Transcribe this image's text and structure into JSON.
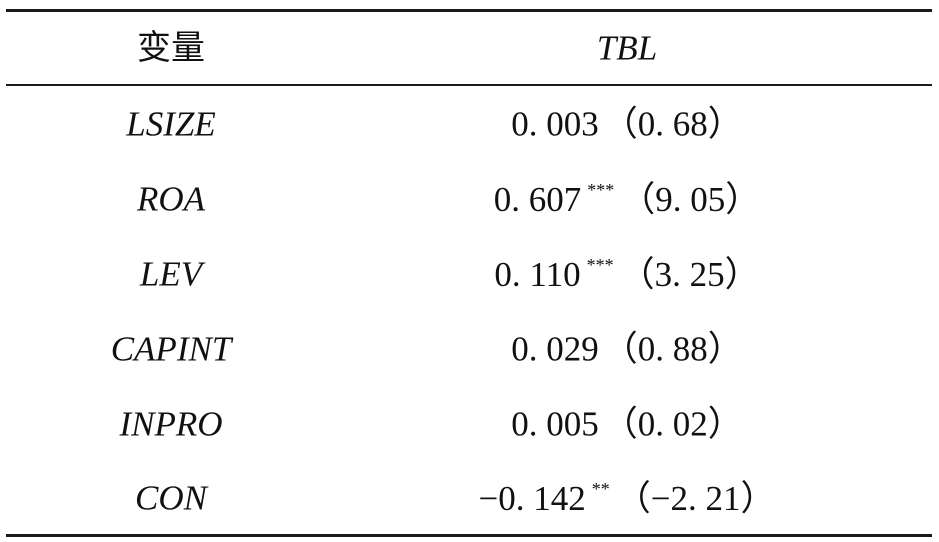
{
  "table": {
    "header": {
      "variable": "变量",
      "value": "TBL"
    },
    "rows": [
      {
        "variable": "LSIZE",
        "coef": "0. 003",
        "stars": "",
        "tstat": "（0. 68）"
      },
      {
        "variable": "ROA",
        "coef": "0. 607",
        "stars": "***",
        "tstat": "（9. 05）"
      },
      {
        "variable": "LEV",
        "coef": "0. 110",
        "stars": "***",
        "tstat": "（3. 25）"
      },
      {
        "variable": "CAPINT",
        "coef": "0. 029",
        "stars": "",
        "tstat": "（0. 88）"
      },
      {
        "variable": "INPRO",
        "coef": "0. 005",
        "stars": "",
        "tstat": "（0. 02）"
      },
      {
        "variable": "CON",
        "coef": "−0. 142",
        "stars": "**",
        "tstat": "（−2. 21）"
      }
    ]
  }
}
